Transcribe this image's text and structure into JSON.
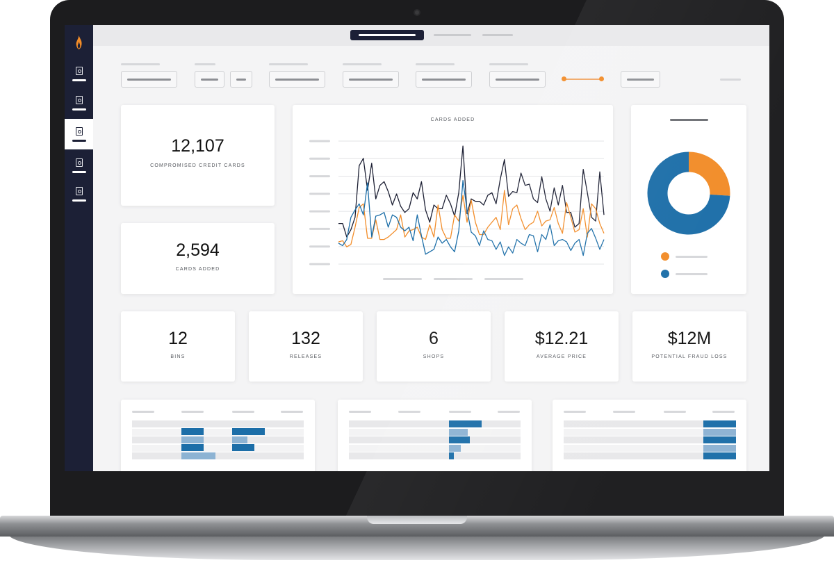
{
  "colors": {
    "navy": "#1c2036",
    "orange": "#f28c28",
    "blue": "#1c6ea8",
    "light_blue": "#8db3d3",
    "dark_line": "#1c1f33"
  },
  "sidebar": {
    "logo": "flame-icon",
    "items": [
      {
        "icon": "document-search-icon",
        "active": false
      },
      {
        "icon": "document-search-icon",
        "active": false
      },
      {
        "icon": "document-search-icon",
        "active": true
      },
      {
        "icon": "document-search-icon",
        "active": false
      },
      {
        "icon": "document-search-icon",
        "active": false
      }
    ]
  },
  "stats": {
    "compromised": {
      "value": "12,107",
      "label": "COMPROMISED CREDIT CARDS"
    },
    "cards_added": {
      "value": "2,594",
      "label": "CARDS ADDED"
    },
    "bins": {
      "value": "12",
      "label": "BINS"
    },
    "releases": {
      "value": "132",
      "label": "RELEASES"
    },
    "shops": {
      "value": "6",
      "label": "SHOPS"
    },
    "average_price": {
      "value": "$12.21",
      "label": "AVERAGE PRICE"
    },
    "fraud_loss": {
      "value": "$12M",
      "label": "POTENTIAL FRAUD LOSS"
    }
  },
  "chart_data": [
    {
      "type": "line",
      "title": "CARDS ADDED",
      "xlabel": "",
      "ylabel": "",
      "grid": true,
      "ylim": [
        0,
        100
      ],
      "x": [
        0,
        1,
        2,
        3,
        4,
        5,
        6,
        7,
        8,
        9,
        10,
        11,
        12,
        13,
        14,
        15,
        16,
        17,
        18,
        19,
        20,
        21,
        22,
        23,
        24,
        25,
        26,
        27,
        28,
        29,
        30,
        31,
        32,
        33,
        34,
        35,
        36,
        37,
        38,
        39,
        40,
        41,
        42,
        43,
        44,
        45,
        46,
        47,
        48,
        49,
        50,
        51,
        52,
        53,
        54,
        55,
        56,
        57,
        58,
        59,
        60,
        61,
        62,
        63,
        64
      ],
      "series": [
        {
          "color": "#1c1f33",
          "values": [
            33,
            33,
            22,
            28,
            38,
            80,
            86,
            60,
            82,
            53,
            64,
            67,
            59,
            48,
            57,
            47,
            42,
            45,
            58,
            53,
            67,
            44,
            34,
            48,
            45,
            45,
            56,
            49,
            39,
            58,
            96,
            41,
            53,
            51,
            51,
            48,
            56,
            58,
            49,
            69,
            85,
            55,
            59,
            58,
            74,
            64,
            65,
            53,
            50,
            71,
            53,
            43,
            62,
            48,
            64,
            42,
            42,
            30,
            33,
            77,
            58,
            38,
            35,
            75,
            40
          ],
          "stroke_width": 1.3
        },
        {
          "color": "#f28c28",
          "values": [
            18,
            19,
            14,
            16,
            30,
            46,
            49,
            21,
            21,
            36,
            20,
            20,
            22,
            25,
            28,
            40,
            22,
            27,
            28,
            30,
            22,
            20,
            32,
            22,
            48,
            28,
            21,
            21,
            40,
            35,
            56,
            34,
            52,
            34,
            24,
            24,
            30,
            34,
            38,
            28,
            60,
            32,
            45,
            48,
            37,
            28,
            32,
            34,
            43,
            31,
            35,
            36,
            46,
            33,
            25,
            50,
            38,
            26,
            28,
            45,
            22,
            49,
            45,
            33,
            25
          ],
          "stroke_width": 1.3
        },
        {
          "color": "#1c6ea8",
          "values": [
            17,
            15,
            20,
            38,
            44,
            49,
            40,
            66,
            22,
            39,
            40,
            42,
            30,
            40,
            38,
            30,
            27,
            30,
            19,
            40,
            23,
            8,
            10,
            12,
            22,
            17,
            20,
            14,
            10,
            27,
            68,
            44,
            26,
            23,
            15,
            27,
            20,
            19,
            12,
            18,
            7,
            14,
            9,
            20,
            17,
            15,
            24,
            23,
            10,
            24,
            20,
            32,
            15,
            19,
            20,
            18,
            11,
            17,
            20,
            7,
            25,
            29,
            21,
            12,
            20
          ],
          "stroke_width": 1.3
        }
      ]
    },
    {
      "type": "pie",
      "donut": true,
      "values": [
        26,
        74
      ],
      "colors": [
        "#f28c28",
        "#1c6ea8"
      ]
    },
    {
      "type": "bar",
      "orientation": "horizontal",
      "panel": 1,
      "rows": [
        {
          "a": 0.13,
          "b": 0.19
        },
        {
          "a": 0.13,
          "b": 0.09
        },
        {
          "a": 0.13,
          "b": 0.13
        },
        {
          "a": 0.2,
          "b": 0.0
        }
      ]
    },
    {
      "type": "bar",
      "orientation": "horizontal",
      "panel": 2,
      "rows": [
        0.19,
        0.11,
        0.12,
        0.07,
        0.03
      ]
    },
    {
      "type": "bar",
      "orientation": "horizontal",
      "panel": 3,
      "rows": [
        0.19,
        0.19,
        0.19,
        0.19,
        0.19
      ]
    }
  ]
}
